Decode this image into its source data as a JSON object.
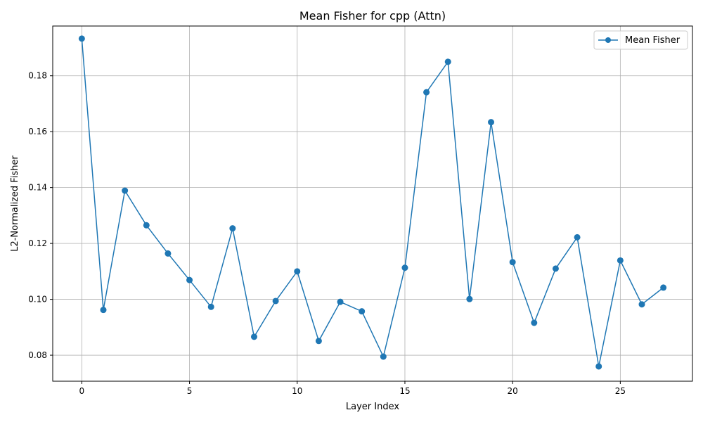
{
  "colors": {
    "series": "#1f77b4",
    "grid": "#b0b0b0",
    "axis": "#000000"
  },
  "chart_data": {
    "type": "line",
    "title": "Mean Fisher for cpp (Attn)",
    "xlabel": "Layer Index",
    "ylabel": "L2-Normalized Fisher",
    "xlim": [
      -1.35,
      28.35
    ],
    "ylim": [
      0.0707,
      0.1978
    ],
    "xticks": [
      0,
      5,
      10,
      15,
      20,
      25
    ],
    "xtick_labels": [
      "0",
      "5",
      "10",
      "15",
      "20",
      "25"
    ],
    "yticks": [
      0.08,
      0.1,
      0.12,
      0.14,
      0.16,
      0.18
    ],
    "ytick_labels": [
      "0.08",
      "0.10",
      "0.12",
      "0.14",
      "0.16",
      "0.18"
    ],
    "grid": true,
    "legend_position": "top-right",
    "marker": "circle",
    "series": [
      {
        "name": "Mean Fisher",
        "x": [
          0,
          1,
          2,
          3,
          4,
          5,
          6,
          7,
          8,
          9,
          10,
          11,
          12,
          13,
          14,
          15,
          16,
          17,
          18,
          19,
          20,
          21,
          22,
          23,
          24,
          25,
          26,
          27
        ],
        "values": [
          0.1933,
          0.0962,
          0.1389,
          0.1265,
          0.1164,
          0.1069,
          0.0973,
          0.1254,
          0.0866,
          0.0994,
          0.11,
          0.0851,
          0.0991,
          0.0957,
          0.0795,
          0.1113,
          0.1741,
          0.185,
          0.1001,
          0.1634,
          0.1133,
          0.0916,
          0.111,
          0.1222,
          0.076,
          0.1139,
          0.0982,
          0.1042
        ]
      }
    ]
  }
}
